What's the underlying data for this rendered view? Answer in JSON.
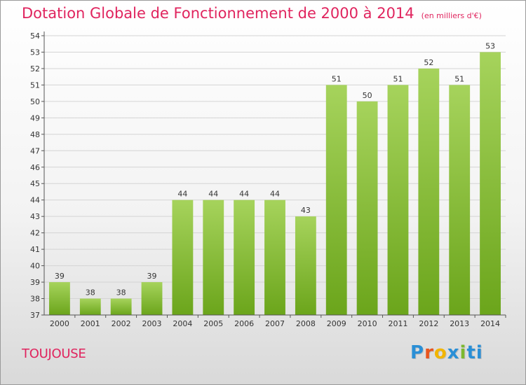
{
  "colors": {
    "title": "#e0245e",
    "bar_light": "#a6d35c",
    "bar_dark": "#6ba51b",
    "grid": "#d4d4d4",
    "axis": "#555555",
    "logo": [
      "#2a8fd6",
      "#e8541d",
      "#f2b500",
      "#2a8fd6",
      "#7cb82f",
      "#2a8fd6"
    ]
  },
  "commune": "TOUJOUSE",
  "brand": "Proxiti",
  "chart_data": {
    "type": "bar",
    "title": "Dotation Globale de Fonctionnement de 2000 à 2014",
    "subtitle": "(en milliers d'€)",
    "categories": [
      "2000",
      "2001",
      "2002",
      "2003",
      "2004",
      "2005",
      "2006",
      "2007",
      "2008",
      "2009",
      "2010",
      "2011",
      "2012",
      "2013",
      "2014"
    ],
    "values": [
      39,
      38,
      38,
      39,
      44,
      44,
      44,
      44,
      43,
      51,
      50,
      51,
      52,
      51,
      53
    ],
    "ylim": [
      37,
      54
    ],
    "yticks": [
      37,
      38,
      39,
      40,
      41,
      42,
      43,
      44,
      45,
      46,
      47,
      48,
      49,
      50,
      51,
      52,
      53,
      54
    ],
    "grid": true,
    "data_labels": true
  }
}
